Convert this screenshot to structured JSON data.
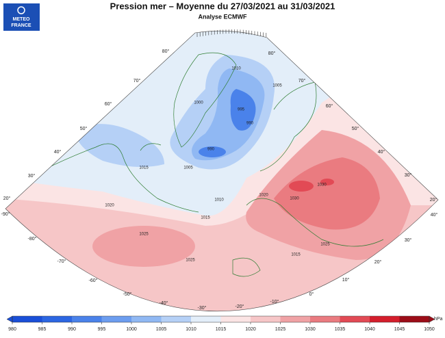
{
  "header": {
    "title": "Pression mer – Moyenne du 27/03/2021 au 31/03/2021",
    "subtitle": "Analyse ECMWF",
    "logo": [
      "METEO",
      "FRANCE"
    ]
  },
  "map": {
    "latitude_labels_left": [
      "80°",
      "70°",
      "60°",
      "50°",
      "40°",
      "30°",
      "20°"
    ],
    "latitude_labels_right": [
      "80°",
      "70°",
      "60°",
      "50°",
      "40°",
      "30°",
      "20°"
    ],
    "longitude_labels": [
      "-90°",
      "-80°",
      "-70°",
      "-60°",
      "-50°",
      "-40°",
      "-30°",
      "-20°",
      "-10°",
      "0°",
      "10°",
      "20°",
      "30°",
      "40°"
    ],
    "isobar_labels": [
      "1010",
      "1005",
      "995",
      "990",
      "990",
      "1000",
      "1005",
      "1015",
      "1010",
      "1015",
      "1020",
      "1020",
      "1025",
      "1025",
      "1030",
      "1030",
      "1025",
      "1015"
    ]
  },
  "legend": {
    "unit": "hPa",
    "ticks": [
      980,
      985,
      990,
      995,
      1000,
      1005,
      1010,
      1015,
      1020,
      1025,
      1030,
      1035,
      1040,
      1045,
      1050
    ],
    "colors": [
      "#1a4fd8",
      "#2c66e2",
      "#4a82ea",
      "#6c9def",
      "#90b8f3",
      "#b5d0f6",
      "#e3eef9",
      "#fbe4e4",
      "#f6c6c7",
      "#f0a2a5",
      "#ea7b80",
      "#e24a55",
      "#d41e2c",
      "#9c0d18"
    ]
  }
}
